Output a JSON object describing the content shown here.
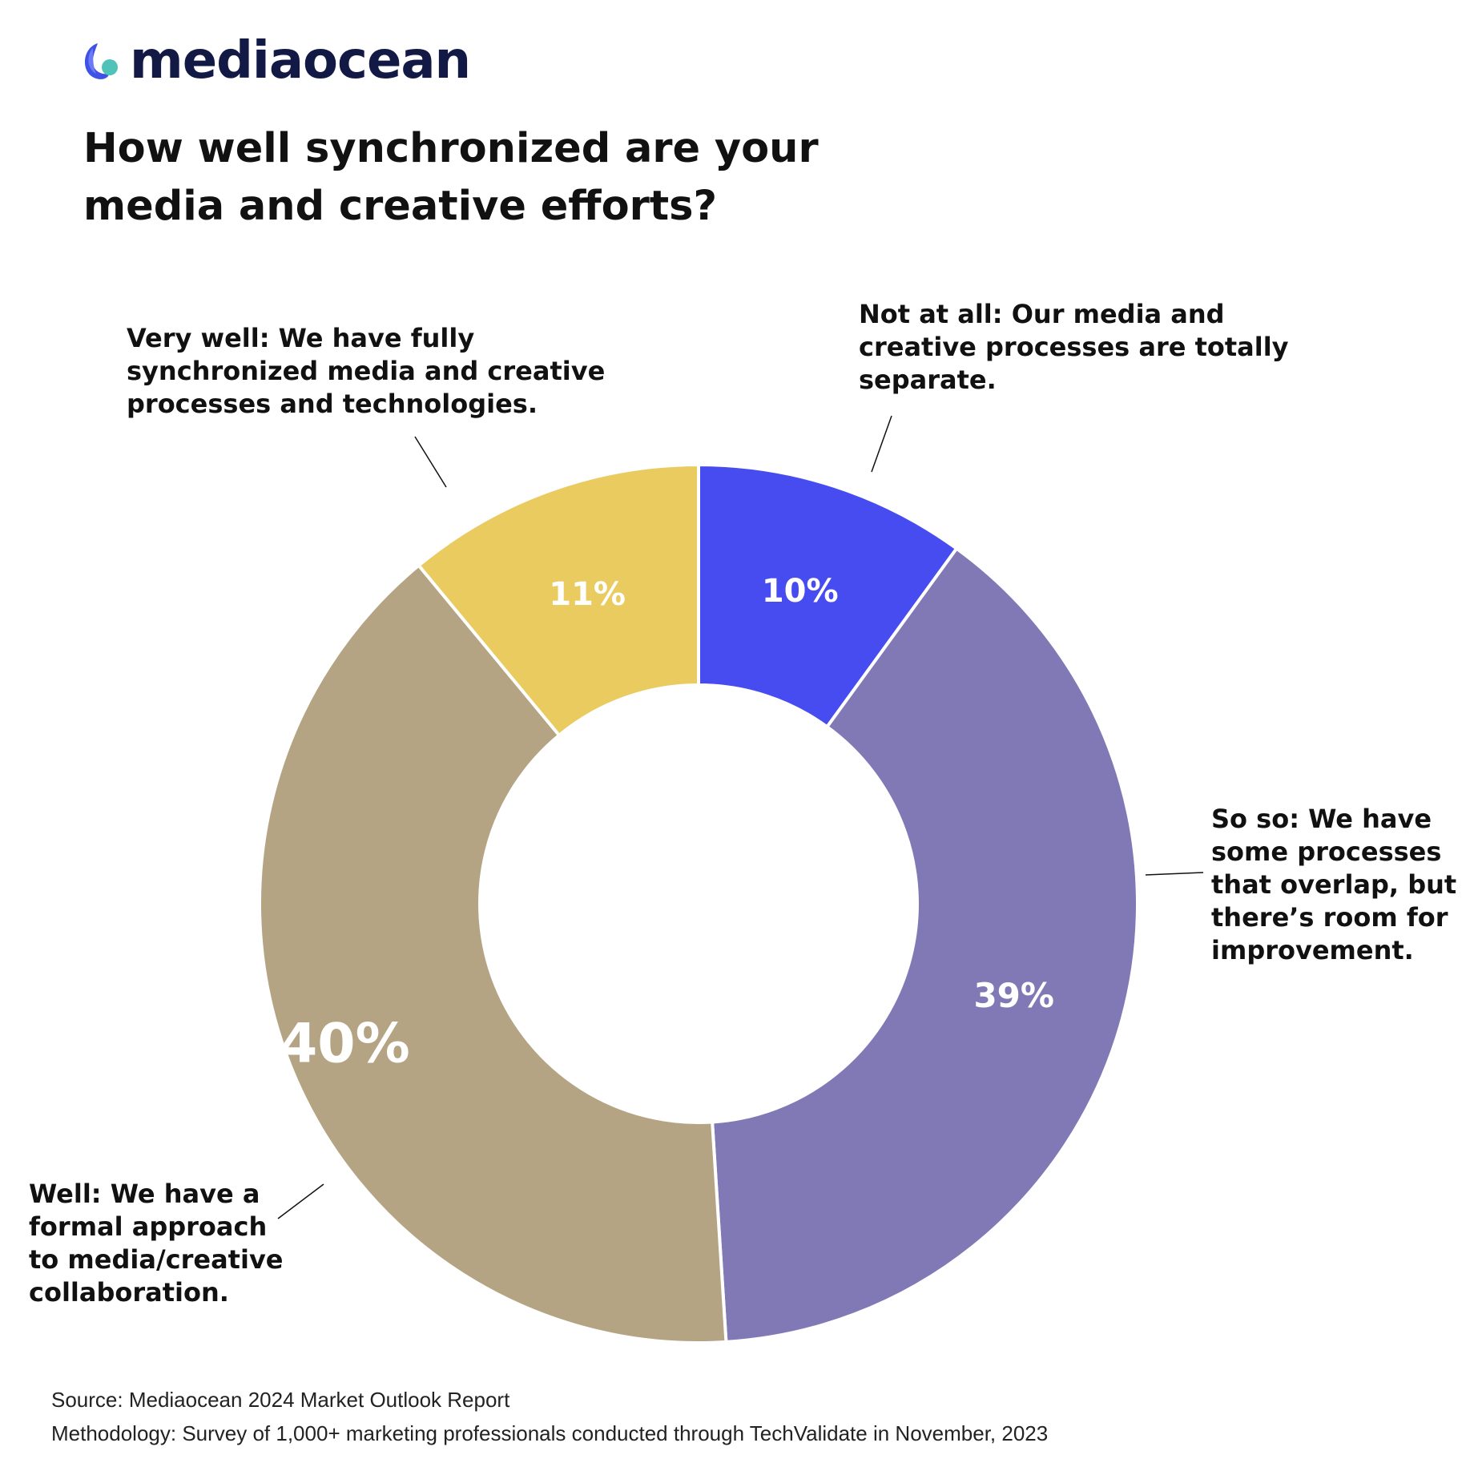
{
  "brand": {
    "name": "mediaocean"
  },
  "title_lines": [
    "How well synchronized are your",
    "media and creative efforts?"
  ],
  "chart_data": {
    "type": "pie",
    "variant": "donut",
    "title": "How well synchronized are your media and creative efforts?",
    "slices": [
      {
        "key": "not-at-all",
        "label": "Not at all: Our media and creative processes are totally separate.",
        "value": 10,
        "display": "10%",
        "color": "#474CF0"
      },
      {
        "key": "so-so",
        "label": "So so: We have some processes that overlap, but there’s room for improvement.",
        "value": 39,
        "display": "39%",
        "color": "#8079B6"
      },
      {
        "key": "well",
        "label": "Well: We have a formal approach to media/creative collaboration.",
        "value": 40,
        "display": "40%",
        "color": "#B4A483"
      },
      {
        "key": "very-well",
        "label": "Very well: We have fully synchronized media and creative processes and technologies.",
        "value": 11,
        "display": "11%",
        "color": "#E9CB5F"
      }
    ],
    "start": "12 o'clock",
    "direction": "clockwise"
  },
  "footer": {
    "source": "Source: Mediaocean 2024 Market Outlook Report",
    "methodology": "Methodology: Survey of 1,000+ marketing professionals conducted through TechValidate in November, 2023"
  },
  "colors": {
    "brand_navy": "#121944",
    "brand_blue": "#3E52E8",
    "brand_teal": "#4FC3B8"
  }
}
